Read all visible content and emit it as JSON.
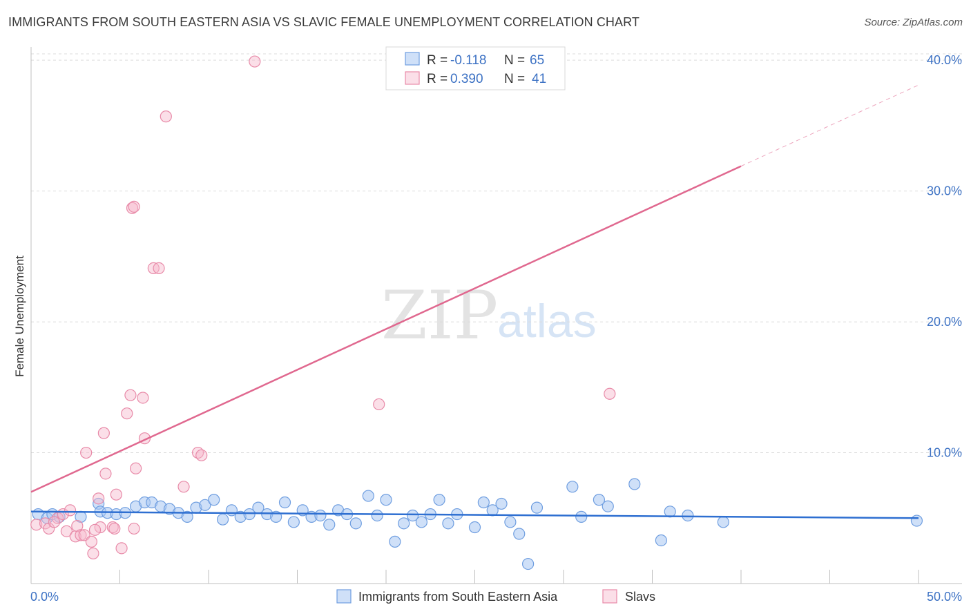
{
  "title": "IMMIGRANTS FROM SOUTH EASTERN ASIA VS SLAVIC FEMALE UNEMPLOYMENT CORRELATION CHART",
  "source": "Source: ZipAtlas.com",
  "watermark": {
    "zip": "ZIP",
    "atlas": "atlas"
  },
  "colors": {
    "blue": "#6f9ee0",
    "blue_line": "#2e6fd1",
    "pink": "#e88aa8",
    "pink_line": "#e0688f",
    "tick_text": "#3d72c4"
  },
  "chart_data": {
    "type": "scatter",
    "title": "IMMIGRANTS FROM SOUTH EASTERN ASIA VS SLAVIC FEMALE UNEMPLOYMENT CORRELATION CHART",
    "xlabel": "",
    "ylabel": "Female Unemployment",
    "xlim": [
      0,
      50
    ],
    "ylim": [
      0,
      40.8
    ],
    "x_tick_labels": [
      "0.0%",
      "50.0%"
    ],
    "y_ticks": [
      10,
      20,
      30,
      40
    ],
    "y_tick_labels": [
      "10.0%",
      "20.0%",
      "30.0%",
      "40.0%"
    ],
    "grid": true,
    "legend": {
      "position": "top-center",
      "entries": [
        {
          "r_label": "R =",
          "r_value": "-0.118",
          "n_label": "N =",
          "n_value": "65"
        },
        {
          "r_label": "R =",
          "r_value": "0.390",
          "n_label": "N =",
          "n_value": "41"
        }
      ]
    },
    "series": [
      {
        "name": "Immigrants from South Eastern Asia",
        "color": "#6f9ee0",
        "trend": {
          "x": [
            0,
            50
          ],
          "y": [
            5.5,
            5.0
          ]
        },
        "points": [
          [
            0.4,
            5.3
          ],
          [
            0.9,
            5.0
          ],
          [
            1.2,
            5.3
          ],
          [
            1.6,
            5.1
          ],
          [
            2.8,
            5.1
          ],
          [
            3.8,
            6.1
          ],
          [
            3.9,
            5.5
          ],
          [
            4.3,
            5.4
          ],
          [
            4.8,
            5.3
          ],
          [
            5.3,
            5.4
          ],
          [
            5.9,
            5.9
          ],
          [
            6.4,
            6.2
          ],
          [
            6.8,
            6.2
          ],
          [
            7.3,
            5.9
          ],
          [
            7.8,
            5.7
          ],
          [
            8.3,
            5.4
          ],
          [
            8.8,
            5.1
          ],
          [
            9.3,
            5.8
          ],
          [
            9.8,
            6.0
          ],
          [
            10.3,
            6.4
          ],
          [
            10.8,
            4.9
          ],
          [
            11.3,
            5.6
          ],
          [
            11.8,
            5.1
          ],
          [
            12.3,
            5.3
          ],
          [
            12.8,
            5.8
          ],
          [
            13.3,
            5.3
          ],
          [
            13.8,
            5.1
          ],
          [
            14.3,
            6.2
          ],
          [
            14.8,
            4.7
          ],
          [
            15.3,
            5.6
          ],
          [
            15.8,
            5.1
          ],
          [
            16.3,
            5.2
          ],
          [
            16.8,
            4.5
          ],
          [
            17.3,
            5.6
          ],
          [
            17.8,
            5.3
          ],
          [
            18.3,
            4.6
          ],
          [
            19.0,
            6.7
          ],
          [
            19.5,
            5.2
          ],
          [
            20.0,
            6.4
          ],
          [
            20.5,
            3.2
          ],
          [
            21.0,
            4.6
          ],
          [
            21.5,
            5.2
          ],
          [
            22.0,
            4.7
          ],
          [
            22.5,
            5.3
          ],
          [
            23.0,
            6.4
          ],
          [
            23.5,
            4.6
          ],
          [
            24.0,
            5.3
          ],
          [
            25.0,
            4.3
          ],
          [
            25.5,
            6.2
          ],
          [
            26.0,
            5.6
          ],
          [
            26.5,
            6.1
          ],
          [
            27.0,
            4.7
          ],
          [
            27.5,
            3.8
          ],
          [
            28.0,
            1.5
          ],
          [
            28.5,
            5.8
          ],
          [
            30.5,
            7.4
          ],
          [
            31.0,
            5.1
          ],
          [
            32.0,
            6.4
          ],
          [
            32.5,
            5.9
          ],
          [
            34.0,
            7.6
          ],
          [
            35.5,
            3.3
          ],
          [
            36.0,
            5.5
          ],
          [
            37.0,
            5.2
          ],
          [
            39.0,
            4.7
          ],
          [
            49.9,
            4.8
          ]
        ]
      },
      {
        "name": "Slavs",
        "color": "#e88aa8",
        "trend": {
          "x": [
            0,
            40
          ],
          "y": [
            7.0,
            31.9
          ]
        },
        "trend_dashed": {
          "x": [
            40,
            50
          ],
          "y": [
            31.9,
            38.1
          ]
        },
        "points": [
          [
            0.3,
            4.5
          ],
          [
            0.8,
            4.6
          ],
          [
            1.0,
            4.2
          ],
          [
            1.5,
            5.0
          ],
          [
            1.8,
            5.3
          ],
          [
            2.0,
            4.0
          ],
          [
            1.3,
            4.7
          ],
          [
            2.2,
            5.6
          ],
          [
            2.5,
            3.6
          ],
          [
            2.6,
            4.4
          ],
          [
            2.8,
            3.7
          ],
          [
            3.0,
            3.7
          ],
          [
            3.1,
            10.0
          ],
          [
            3.4,
            3.2
          ],
          [
            3.5,
            2.3
          ],
          [
            3.8,
            6.5
          ],
          [
            3.9,
            4.3
          ],
          [
            3.6,
            4.1
          ],
          [
            4.1,
            11.5
          ],
          [
            4.2,
            8.4
          ],
          [
            4.6,
            4.3
          ],
          [
            4.7,
            4.2
          ],
          [
            4.8,
            6.8
          ],
          [
            5.1,
            2.7
          ],
          [
            5.4,
            13.0
          ],
          [
            5.6,
            14.4
          ],
          [
            5.8,
            4.2
          ],
          [
            5.9,
            8.8
          ],
          [
            6.4,
            11.1
          ],
          [
            6.3,
            14.2
          ],
          [
            6.9,
            24.1
          ],
          [
            7.2,
            24.1
          ],
          [
            7.6,
            35.7
          ],
          [
            5.7,
            28.7
          ],
          [
            5.8,
            28.8
          ],
          [
            8.6,
            7.4
          ],
          [
            9.4,
            10.0
          ],
          [
            9.6,
            9.8
          ],
          [
            12.6,
            39.9
          ],
          [
            19.6,
            13.7
          ],
          [
            32.6,
            14.5
          ]
        ]
      }
    ]
  },
  "bottom_legend": {
    "items": [
      {
        "label": "Immigrants from South Eastern Asia"
      },
      {
        "label": "Slavs"
      }
    ]
  }
}
